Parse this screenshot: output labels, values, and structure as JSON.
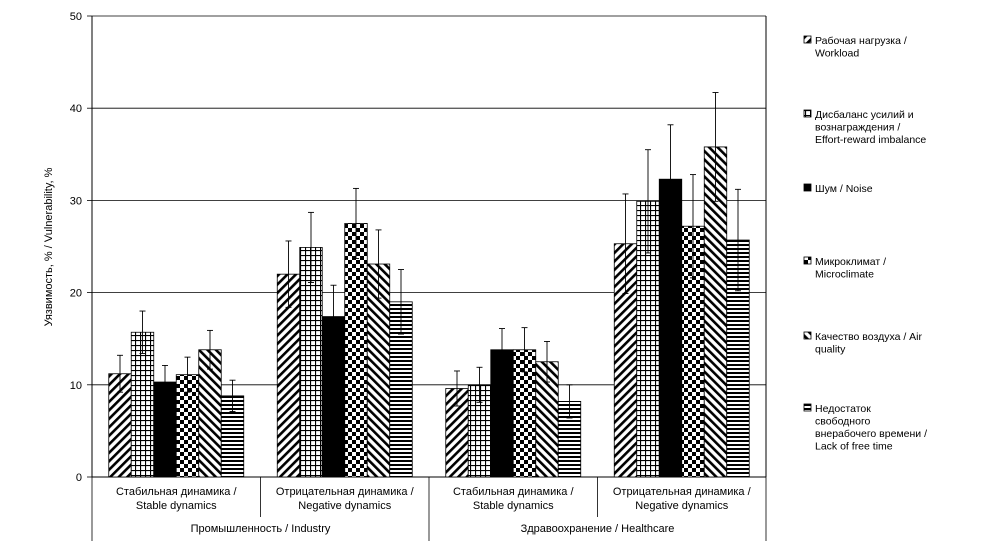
{
  "chart_data": {
    "type": "bar",
    "ylabel": "Уязвимость, % / Vulnerability, %",
    "ylim": [
      0,
      50
    ],
    "yticks": [
      "0",
      "10",
      "20",
      "30",
      "40",
      "50"
    ],
    "grid": true,
    "legend_position": "right",
    "categories": [
      {
        "line1": "Стабильная динамика /",
        "line2": "Stable dynamics"
      },
      {
        "line1": "Отрицательная динамика /",
        "line2": "Negative dynamics"
      },
      {
        "line1": "Стабильная динамика /",
        "line2": "Stable dynamics"
      },
      {
        "line1": "Отрицательная динамика /",
        "line2": "Negative dynamics"
      }
    ],
    "groups": [
      "Промышленность / Industry",
      "Здравоохранение / Healthcare"
    ],
    "series": [
      {
        "name": "Рабочая нагрузка / Workload",
        "legend_lines": [
          "Рабочая нагрузка /",
          "Workload"
        ],
        "pattern": "diag-right",
        "values": [
          11.2,
          22.0,
          9.6,
          25.3
        ],
        "errors": [
          2.0,
          3.6,
          1.9,
          5.4
        ]
      },
      {
        "name": "Дисбаланс усилий и вознаграждения / Effort-reward imbalance",
        "legend_lines": [
          "Дисбаланс усилий и",
          "вознаграждения /",
          "Effort-reward imbalance"
        ],
        "pattern": "grid",
        "values": [
          15.7,
          24.9,
          10.0,
          29.9
        ],
        "errors": [
          2.3,
          3.8,
          1.9,
          5.6
        ]
      },
      {
        "name": "Шум / Noise",
        "legend_lines": [
          "Шум / Noise"
        ],
        "pattern": "solid",
        "values": [
          10.3,
          17.4,
          13.8,
          32.3
        ],
        "errors": [
          1.8,
          3.4,
          2.3,
          5.9
        ]
      },
      {
        "name": "Микроклимат / Microclimate",
        "legend_lines": [
          "Микроклимат /",
          "Microclimate"
        ],
        "pattern": "checker",
        "values": [
          11.1,
          27.5,
          13.8,
          27.2
        ],
        "errors": [
          1.9,
          3.8,
          2.4,
          5.6
        ]
      },
      {
        "name": "Качество воздуха / Air quality",
        "legend_lines": [
          "Качество воздуха / Air",
          "quality"
        ],
        "pattern": "diag-left",
        "values": [
          13.8,
          23.1,
          12.5,
          35.8
        ],
        "errors": [
          2.1,
          3.7,
          2.2,
          5.9
        ]
      },
      {
        "name": "Недостаток свободного внерабочего времени / Lack of free time",
        "legend_lines": [
          "Недостаток",
          "свободного",
          "внерабочего времени /",
          "Lack of free time"
        ],
        "pattern": "horizontal",
        "values": [
          8.8,
          19.0,
          8.2,
          25.7
        ],
        "errors": [
          1.7,
          3.5,
          1.8,
          5.5
        ]
      }
    ]
  }
}
